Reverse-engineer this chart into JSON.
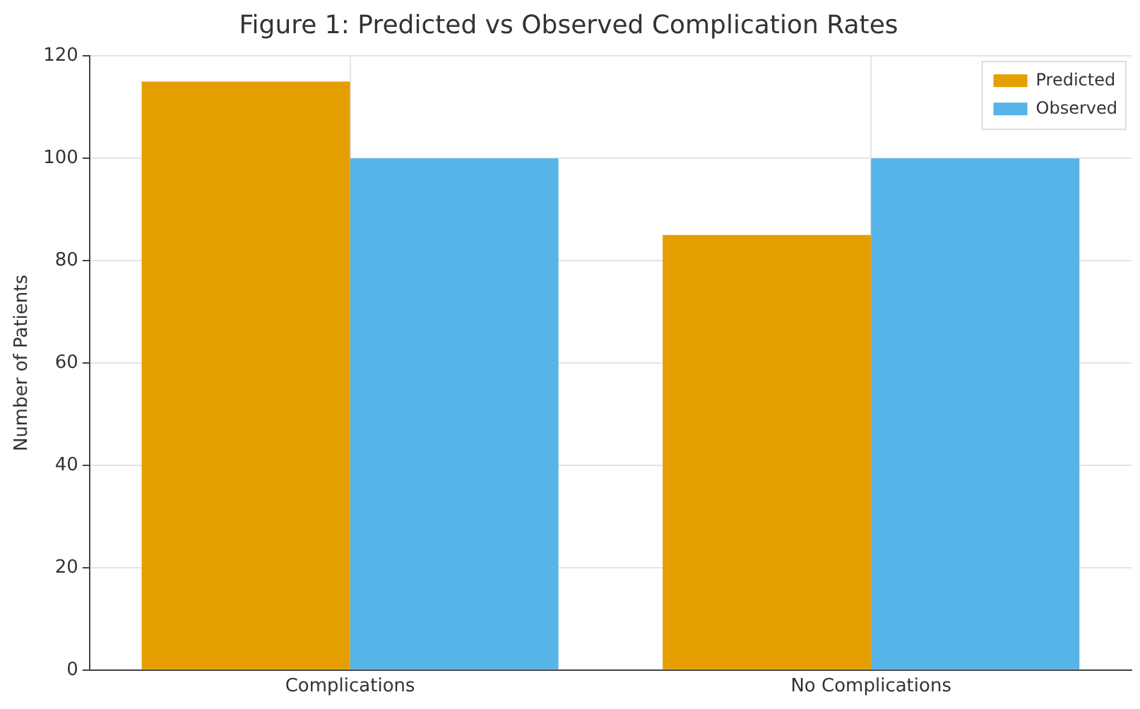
{
  "chart_data": {
    "type": "bar",
    "title": "Figure 1: Predicted vs Observed Complication Rates",
    "ylabel": "Number of Patients",
    "categories": [
      "Complications",
      "No Complications"
    ],
    "series": [
      {
        "name": "Predicted",
        "color": "#e69f00",
        "values": [
          115,
          85
        ]
      },
      {
        "name": "Observed",
        "color": "#56b4e9",
        "values": [
          100,
          100
        ]
      }
    ],
    "ylim": [
      0,
      120
    ],
    "yticks": [
      0,
      20,
      40,
      60,
      80,
      100,
      120
    ],
    "grid": true,
    "legend": "top right"
  }
}
